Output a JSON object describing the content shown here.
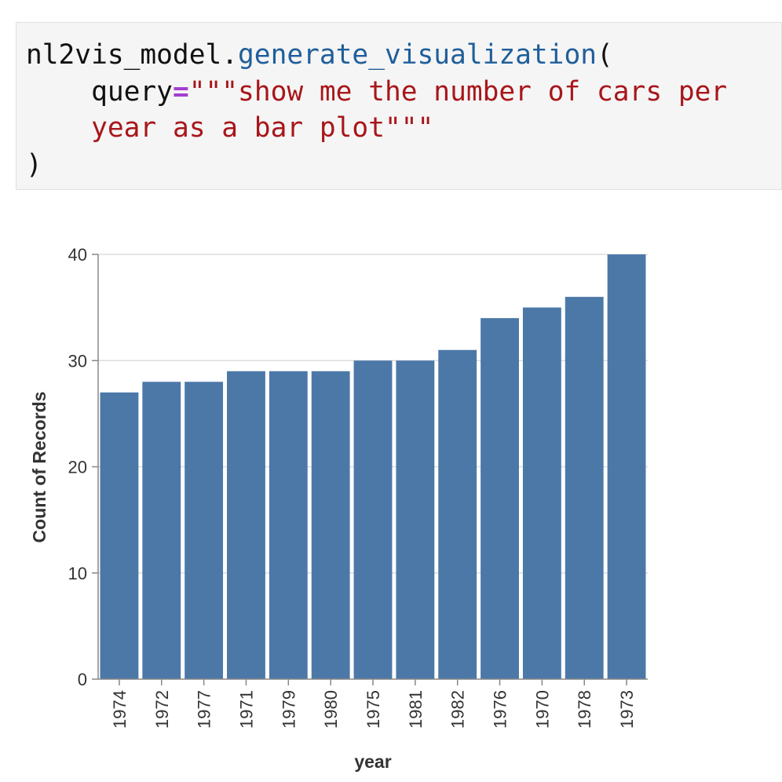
{
  "code": {
    "object": "nl2vis_model",
    "method": "generate_visualization",
    "open": "(",
    "arg_name": "query",
    "equals": "=",
    "string_line1": "\"\"\"show me the number of cars per",
    "string_line2": "year as a bar plot\"\"\"",
    "close": ")"
  },
  "chart_data": {
    "type": "bar",
    "categories": [
      "1974",
      "1972",
      "1977",
      "1971",
      "1979",
      "1980",
      "1975",
      "1981",
      "1982",
      "1976",
      "1970",
      "1978",
      "1973"
    ],
    "values": [
      27,
      28,
      28,
      29,
      29,
      29,
      30,
      30,
      31,
      34,
      35,
      36,
      40
    ],
    "xlabel": "year",
    "ylabel": "Count of Records",
    "ylim": [
      0,
      40
    ],
    "yticks": [
      0,
      10,
      20,
      30,
      40
    ],
    "grid": true,
    "bar_color": "#4c78a8"
  }
}
